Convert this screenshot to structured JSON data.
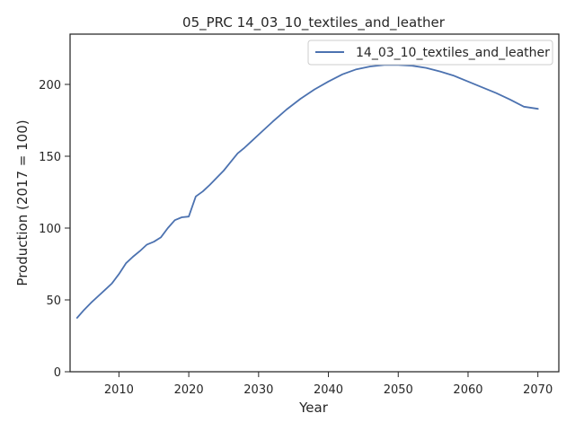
{
  "chart_data": {
    "type": "line",
    "title": "05_PRC 14_03_10_textiles_and_leather",
    "xlabel": "Year",
    "ylabel": "Production (2017 = 100)",
    "xlim": [
      2003,
      2073
    ],
    "ylim": [
      0,
      235
    ],
    "xticks": [
      2010,
      2020,
      2030,
      2040,
      2050,
      2060,
      2070
    ],
    "yticks": [
      0,
      50,
      100,
      150,
      200
    ],
    "grid": false,
    "legend_position": "top-right",
    "series": [
      {
        "name": "14_03_10_textiles_and_leather",
        "color": "#4c72b0",
        "x": [
          2004,
          2005,
          2006,
          2007,
          2008,
          2009,
          2010,
          2011,
          2012,
          2013,
          2014,
          2015,
          2016,
          2017,
          2018,
          2019,
          2020,
          2021,
          2022,
          2023,
          2024,
          2025,
          2026,
          2027,
          2028,
          2029,
          2030,
          2032,
          2034,
          2036,
          2038,
          2040,
          2042,
          2044,
          2046,
          2048,
          2050,
          2052,
          2054,
          2056,
          2058,
          2060,
          2062,
          2064,
          2066,
          2068,
          2070
        ],
        "y": [
          37.5,
          43.0,
          48.0,
          52.5,
          57.0,
          61.5,
          68.0,
          75.5,
          80.0,
          84.0,
          88.5,
          90.5,
          93.5,
          100.0,
          105.5,
          107.5,
          108.0,
          122.0,
          125.5,
          130.0,
          135.0,
          140.0,
          146.0,
          152.0,
          156.0,
          160.5,
          165.0,
          174.0,
          182.5,
          190.0,
          196.5,
          202.0,
          207.0,
          210.5,
          212.5,
          213.5,
          213.5,
          213.0,
          211.5,
          209.0,
          206.0,
          202.0,
          198.0,
          194.0,
          189.5,
          184.5,
          183.0
        ]
      }
    ]
  }
}
